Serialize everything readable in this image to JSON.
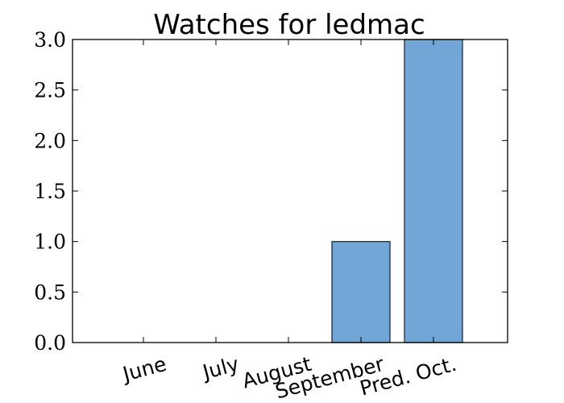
{
  "chart_data": {
    "type": "bar",
    "title": "Watches for ledmac",
    "categories": [
      "June",
      "July",
      "August",
      "September",
      "Pred. Oct."
    ],
    "values": [
      0,
      0,
      0,
      1,
      3
    ],
    "ylim": [
      0,
      3
    ],
    "yticks": [
      "0.0",
      "0.5",
      "1.0",
      "1.5",
      "2.0",
      "2.5",
      "3.0"
    ],
    "xlabel": "",
    "ylabel": "",
    "bar_color": "#72a6d6",
    "grid": false
  }
}
